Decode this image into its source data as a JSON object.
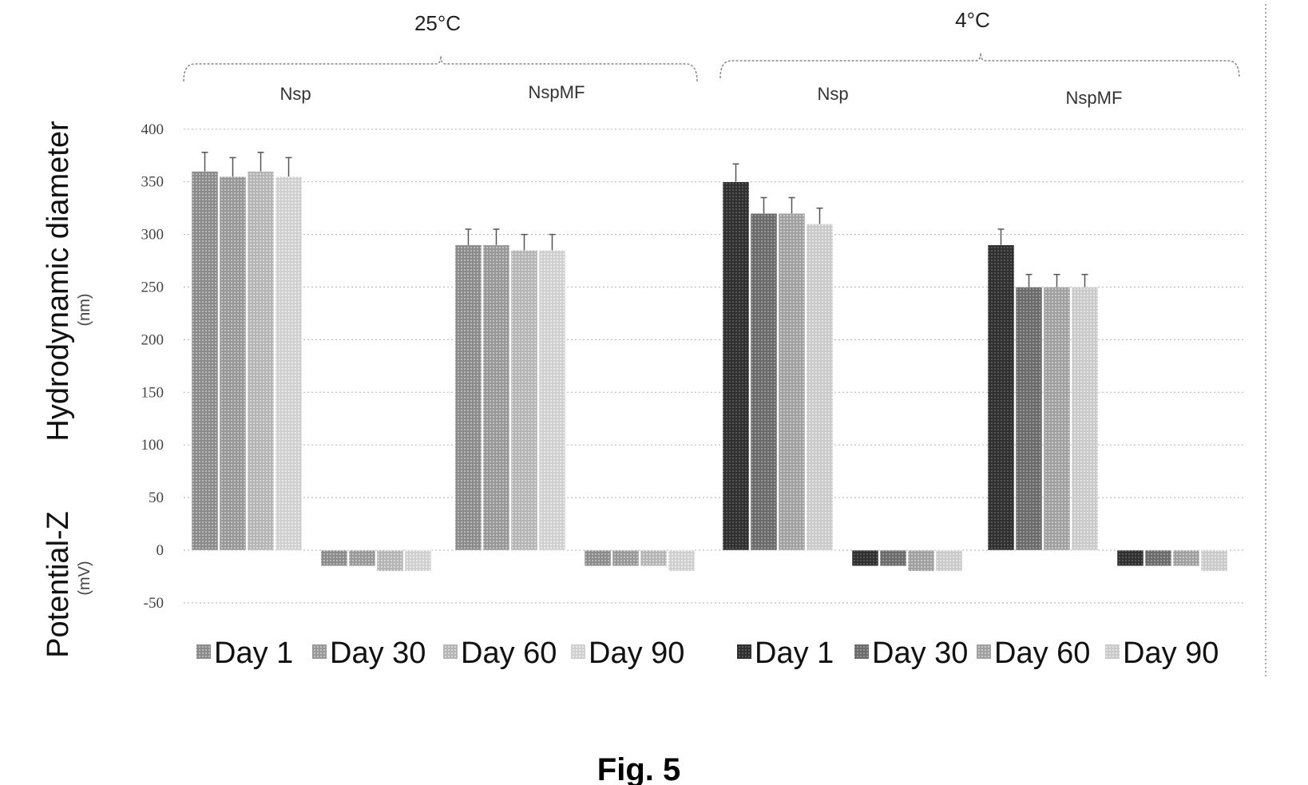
{
  "figure_label": "Fig. 5",
  "chart_data": {
    "type": "bar",
    "title": "",
    "ylabel": "Hydrodynamic diameter",
    "ylabel_unit": "(nm)",
    "ylabel2": "Potential-Z",
    "ylabel2_unit": "(mV)",
    "ylim": [
      -50,
      400
    ],
    "yticks": [
      400,
      350,
      300,
      250,
      200,
      150,
      100,
      50,
      0,
      -50
    ],
    "grid": true,
    "temperatures": [
      {
        "label": "25°C",
        "groups": [
          "Nsp",
          "NspMF"
        ]
      },
      {
        "label": "4°C",
        "groups": [
          "Nsp",
          "NspMF"
        ]
      }
    ],
    "series_labels": [
      "Day 1",
      "Day 30",
      "Day 60",
      "Day 90"
    ],
    "legends": [
      {
        "temperature": "25°C",
        "entries": [
          "Day 1",
          "Day 30",
          "Day 60",
          "Day 90"
        ],
        "colors": [
          "#8c8c8c",
          "#9a9a9a",
          "#bdbdbd",
          "#d9d9d9"
        ]
      },
      {
        "temperature": "4°C",
        "entries": [
          "Day 1",
          "Day 30",
          "Day 60",
          "Day 90"
        ],
        "colors": [
          "#2e2e2e",
          "#6e6e6e",
          "#a5a5a5",
          "#d0d0d0"
        ]
      }
    ],
    "clusters": [
      {
        "temperature": "25°C",
        "group": "Nsp",
        "measure": "Hydrodynamic diameter",
        "values": [
          360,
          355,
          360,
          355
        ],
        "errors": [
          18,
          18,
          18,
          18
        ]
      },
      {
        "temperature": "25°C",
        "group": "Nsp",
        "measure": "Potential-Z",
        "values": [
          -15,
          -15,
          -20,
          -20
        ],
        "errors": [
          0,
          0,
          0,
          0
        ]
      },
      {
        "temperature": "25°C",
        "group": "NspMF",
        "measure": "Hydrodynamic diameter",
        "values": [
          290,
          290,
          285,
          285
        ],
        "errors": [
          15,
          15,
          15,
          15
        ]
      },
      {
        "temperature": "25°C",
        "group": "NspMF",
        "measure": "Potential-Z",
        "values": [
          -15,
          -15,
          -15,
          -20
        ],
        "errors": [
          0,
          0,
          0,
          0
        ]
      },
      {
        "temperature": "4°C",
        "group": "Nsp",
        "measure": "Hydrodynamic diameter",
        "values": [
          350,
          320,
          320,
          310
        ],
        "errors": [
          17,
          15,
          15,
          15
        ]
      },
      {
        "temperature": "4°C",
        "group": "Nsp",
        "measure": "Potential-Z",
        "values": [
          -15,
          -15,
          -20,
          -20
        ],
        "errors": [
          0,
          0,
          0,
          0
        ]
      },
      {
        "temperature": "4°C",
        "group": "NspMF",
        "measure": "Hydrodynamic diameter",
        "values": [
          290,
          250,
          250,
          250
        ],
        "errors": [
          15,
          12,
          12,
          12
        ]
      },
      {
        "temperature": "4°C",
        "group": "NspMF",
        "measure": "Potential-Z",
        "values": [
          -15,
          -15,
          -15,
          -20
        ],
        "errors": [
          0,
          0,
          0,
          0
        ]
      }
    ]
  }
}
